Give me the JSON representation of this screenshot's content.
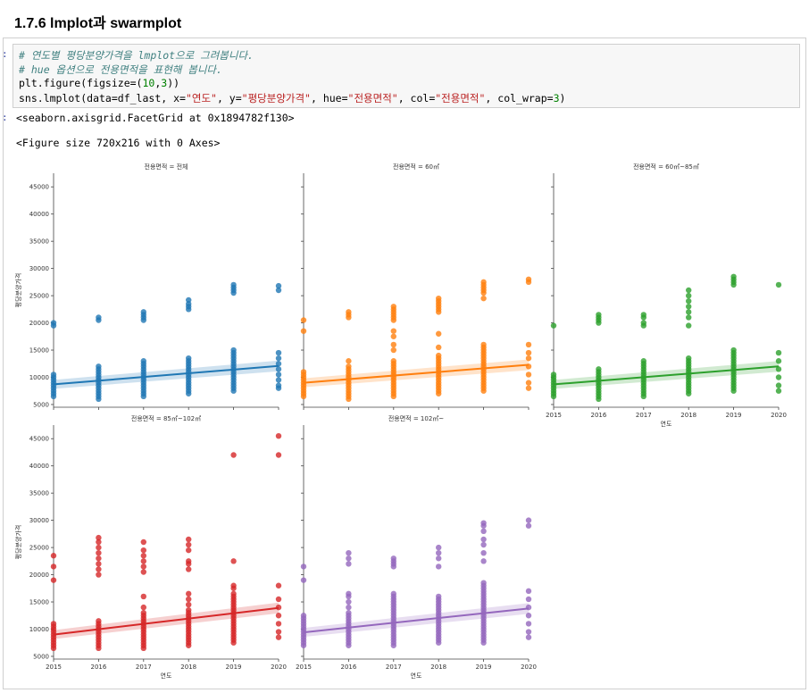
{
  "section": {
    "title": "1.7.6 lmplot과 swarmplot"
  },
  "cell": {
    "prompt_in": ":",
    "prompt_out": ":",
    "code": {
      "comment1": "# 연도별 평당분양가격을 lmplot으로 그려봅니다.",
      "comment2": "# hue 옵션으로 전용면적을 표현해 봅니다.",
      "line3_a": "plt.figure(figsize=(",
      "line3_n1": "10",
      "line3_b": ",",
      "line3_n2": "3",
      "line3_c": "))",
      "line4_a": "sns.lmplot(data=df_last, x=",
      "line4_s1": "\"연도\"",
      "line4_b": ", y=",
      "line4_s2": "\"평당분양가격\"",
      "line4_c": ", hue=",
      "line4_s3": "\"전용면적\"",
      "line4_d": ", col=",
      "line4_s4": "\"전용면적\"",
      "line4_e": ", col_wrap=",
      "line4_n": "3",
      "line4_f": ")"
    },
    "output1": "<seaborn.axisgrid.FacetGrid at 0x1894782f130>",
    "output2": "<Figure size 720x216 with 0 Axes>"
  },
  "chart_data": {
    "type": "scatter",
    "x_label": "연도",
    "y_label": "평당분양가격",
    "x_ticks": [
      2015,
      2016,
      2017,
      2018,
      2019,
      2020
    ],
    "y_ticks": [
      5000,
      10000,
      15000,
      20000,
      25000,
      30000,
      35000,
      40000,
      45000
    ],
    "xlim": [
      2015,
      2020
    ],
    "ylim": [
      4500,
      47500
    ],
    "col_wrap": 3,
    "panels": [
      {
        "title": "전용면적 = 전체",
        "color": "#1f77b4",
        "regression": {
          "x": [
            2015,
            2020
          ],
          "y": [
            8700,
            12100
          ]
        },
        "points": [
          {
            "x": 2015,
            "ys": [
              6500,
              7000,
              7500,
              8000,
              8500,
              9000,
              9500,
              10000,
              10500,
              19500,
              20000
            ]
          },
          {
            "x": 2016,
            "ys": [
              6000,
              6500,
              7000,
              7500,
              8000,
              8500,
              9000,
              9500,
              10000,
              10500,
              11000,
              11500,
              12000,
              20500,
              21000
            ]
          },
          {
            "x": 2017,
            "ys": [
              6500,
              7000,
              7500,
              8000,
              8500,
              9000,
              9500,
              10000,
              10500,
              11000,
              11500,
              12000,
              12500,
              13000,
              20500,
              21000,
              21500,
              22000
            ]
          },
          {
            "x": 2018,
            "ys": [
              7000,
              7500,
              8000,
              8500,
              9000,
              9500,
              10000,
              10500,
              11000,
              11500,
              12000,
              12500,
              13000,
              13500,
              22500,
              23000,
              23500,
              24200
            ]
          },
          {
            "x": 2019,
            "ys": [
              7500,
              8000,
              8500,
              9000,
              9500,
              10000,
              10500,
              11000,
              11500,
              12000,
              12500,
              13000,
              13500,
              14000,
              14500,
              15000,
              25500,
              26000,
              26500,
              27000
            ]
          },
          {
            "x": 2020,
            "ys": [
              8000,
              8500,
              9500,
              10500,
              11500,
              12500,
              13500,
              14500,
              26000,
              26800
            ]
          }
        ]
      },
      {
        "title": "전용면적 = 60㎡",
        "color": "#ff7f0e",
        "regression": {
          "x": [
            2015,
            2020
          ],
          "y": [
            9000,
            12300
          ]
        },
        "points": [
          {
            "x": 2015,
            "ys": [
              6500,
              7000,
              7500,
              8000,
              8500,
              9000,
              9500,
              10000,
              10500,
              11000,
              18500,
              20500
            ]
          },
          {
            "x": 2016,
            "ys": [
              6000,
              6500,
              7000,
              7500,
              8000,
              8500,
              9000,
              9500,
              10000,
              10500,
              11000,
              11500,
              12000,
              13000,
              21000,
              21500,
              22000
            ]
          },
          {
            "x": 2017,
            "ys": [
              6500,
              7000,
              7500,
              8000,
              8500,
              9000,
              9500,
              10000,
              10500,
              11000,
              11500,
              12000,
              12500,
              13000,
              15000,
              16000,
              17500,
              18500,
              20500,
              21000,
              21500,
              22000,
              22500,
              23000
            ]
          },
          {
            "x": 2018,
            "ys": [
              7000,
              7500,
              8000,
              8500,
              9000,
              9500,
              10000,
              10500,
              11000,
              11500,
              12000,
              12500,
              13000,
              13500,
              14000,
              15500,
              18000,
              22000,
              22500,
              23000,
              23500,
              24000,
              24500
            ]
          },
          {
            "x": 2019,
            "ys": [
              7500,
              8000,
              8500,
              9000,
              9500,
              10000,
              10500,
              11000,
              11500,
              12000,
              12500,
              13000,
              13500,
              14000,
              14500,
              15000,
              15500,
              16000,
              24500,
              25500,
              26000,
              26500,
              27000,
              27500
            ]
          },
          {
            "x": 2020,
            "ys": [
              8000,
              9000,
              10500,
              12000,
              13500,
              14500,
              16000,
              27500,
              28000
            ]
          }
        ]
      },
      {
        "title": "전용면적 = 60㎡~85㎡",
        "color": "#2ca02c",
        "regression": {
          "x": [
            2015,
            2020
          ],
          "y": [
            8700,
            12000
          ]
        },
        "points": [
          {
            "x": 2015,
            "ys": [
              6500,
              7000,
              7500,
              8000,
              8500,
              9000,
              9500,
              10000,
              10500,
              19500
            ]
          },
          {
            "x": 2016,
            "ys": [
              6000,
              6500,
              7000,
              7500,
              8000,
              8500,
              9000,
              9500,
              10000,
              10500,
              11000,
              11500,
              20000,
              20500,
              21000,
              21500
            ]
          },
          {
            "x": 2017,
            "ys": [
              6500,
              7000,
              7500,
              8000,
              8500,
              9000,
              9500,
              10000,
              10500,
              11000,
              11500,
              12000,
              12500,
              13000,
              19500,
              20000,
              21000,
              21500
            ]
          },
          {
            "x": 2018,
            "ys": [
              7000,
              7500,
              8000,
              8500,
              9000,
              9500,
              10000,
              10500,
              11000,
              11500,
              12000,
              12500,
              13000,
              13500,
              19500,
              21000,
              22000,
              23000,
              24000,
              25000,
              26000
            ]
          },
          {
            "x": 2019,
            "ys": [
              7500,
              8000,
              8500,
              9000,
              9500,
              10000,
              10500,
              11000,
              11500,
              12000,
              12500,
              13000,
              13500,
              14000,
              14500,
              15000,
              27000,
              27500,
              28000,
              28500
            ]
          },
          {
            "x": 2020,
            "ys": [
              7500,
              8500,
              10000,
              11500,
              13000,
              14500,
              27000
            ]
          }
        ]
      },
      {
        "title": "전용면적 = 85㎡~102㎡",
        "color": "#d62728",
        "regression": {
          "x": [
            2015,
            2020
          ],
          "y": [
            9000,
            13900
          ]
        },
        "points": [
          {
            "x": 2015,
            "ys": [
              6500,
              7000,
              7500,
              8000,
              8500,
              9000,
              9500,
              10000,
              10500,
              11000,
              19000,
              21500,
              23500
            ]
          },
          {
            "x": 2016,
            "ys": [
              6500,
              7000,
              7500,
              8000,
              8500,
              9000,
              9500,
              10000,
              10500,
              11000,
              11500,
              20000,
              21000,
              22000,
              23000,
              24000,
              25000,
              26000,
              26800
            ]
          },
          {
            "x": 2017,
            "ys": [
              6500,
              7000,
              7500,
              8000,
              8500,
              9000,
              9500,
              10000,
              10500,
              11000,
              11500,
              12000,
              12500,
              13000,
              14000,
              16000,
              20500,
              21500,
              22500,
              23500,
              24500,
              26000
            ]
          },
          {
            "x": 2018,
            "ys": [
              7000,
              7500,
              8000,
              8500,
              9000,
              9500,
              10000,
              10500,
              11000,
              11500,
              12000,
              12500,
              13000,
              13500,
              14500,
              15500,
              16500,
              21000,
              22000,
              22500,
              24500,
              25500,
              26500
            ]
          },
          {
            "x": 2019,
            "ys": [
              7500,
              8000,
              8500,
              9000,
              9500,
              10000,
              10500,
              11000,
              11500,
              12000,
              12500,
              13000,
              13500,
              14000,
              14500,
              15000,
              15500,
              16000,
              16500,
              17500,
              18000,
              22500,
              42000
            ]
          },
          {
            "x": 2020,
            "ys": [
              8500,
              9500,
              11000,
              12500,
              14000,
              15500,
              18000,
              42000,
              45500
            ]
          }
        ]
      },
      {
        "title": "전용면적 = 102㎡~",
        "color": "#9467bd",
        "regression": {
          "x": [
            2015,
            2020
          ],
          "y": [
            9400,
            13800
          ]
        },
        "points": [
          {
            "x": 2015,
            "ys": [
              7000,
              7500,
              8000,
              8500,
              9000,
              9500,
              10000,
              10500,
              11000,
              11500,
              12000,
              12500,
              19000,
              21500
            ]
          },
          {
            "x": 2016,
            "ys": [
              7000,
              7500,
              8000,
              8500,
              9000,
              9500,
              10000,
              10500,
              11000,
              11500,
              12000,
              12500,
              13000,
              14000,
              15000,
              16000,
              16500,
              22000,
              23000,
              24000
            ]
          },
          {
            "x": 2017,
            "ys": [
              7000,
              7500,
              8000,
              8500,
              9000,
              9500,
              10000,
              10500,
              11000,
              11500,
              12000,
              12500,
              13000,
              13500,
              14000,
              14500,
              15000,
              15500,
              16000,
              16500,
              21500,
              22000,
              22500,
              23000
            ]
          },
          {
            "x": 2018,
            "ys": [
              7500,
              8000,
              8500,
              9000,
              9500,
              10000,
              10500,
              11000,
              11500,
              12000,
              12500,
              13000,
              13500,
              14000,
              14500,
              15000,
              15500,
              16000,
              21500,
              23000,
              24000,
              25000
            ]
          },
          {
            "x": 2019,
            "ys": [
              7500,
              8000,
              8500,
              9000,
              9500,
              10000,
              10500,
              11000,
              11500,
              12000,
              12500,
              13000,
              13500,
              14000,
              14500,
              15000,
              15500,
              16000,
              16500,
              17000,
              17500,
              18000,
              18500,
              22500,
              24000,
              25500,
              26500,
              28000,
              29000,
              29500
            ]
          },
          {
            "x": 2020,
            "ys": [
              8500,
              9500,
              11000,
              12500,
              14000,
              15500,
              17000,
              29000,
              30000
            ]
          }
        ]
      }
    ]
  }
}
